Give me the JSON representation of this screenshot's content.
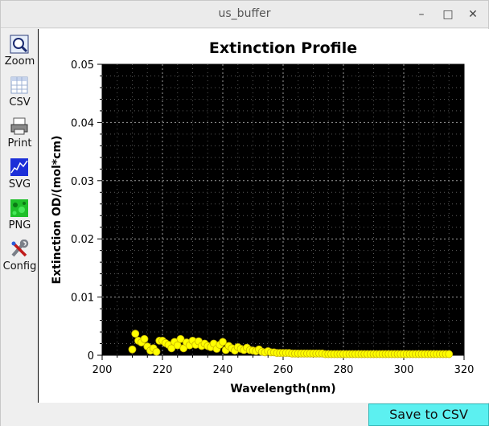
{
  "window": {
    "title": "us_buffer"
  },
  "toolbar": {
    "items": [
      {
        "label": "Zoom",
        "icon": "zoom-icon"
      },
      {
        "label": "CSV",
        "icon": "csv-icon"
      },
      {
        "label": "Print",
        "icon": "print-icon"
      },
      {
        "label": "SVG",
        "icon": "svg-icon"
      },
      {
        "label": "PNG",
        "icon": "png-icon"
      },
      {
        "label": "Config",
        "icon": "config-icon"
      }
    ]
  },
  "footer": {
    "save_label": "Save to CSV"
  },
  "colors": {
    "plot_bg": "#000000",
    "marker": "#ffff00",
    "button": "#5cf0f0"
  },
  "chart_data": {
    "type": "scatter",
    "title": "Extinction Profile",
    "xlabel": "Wavelength(nm)",
    "ylabel": "Extinction OD/(mol*cm)",
    "xlim": [
      200,
      320
    ],
    "ylim": [
      0,
      0.05
    ],
    "xticks": [
      "200",
      "220",
      "240",
      "260",
      "280",
      "300",
      "320"
    ],
    "yticks": [
      "0",
      "0.01",
      "0.02",
      "0.03",
      "0.04",
      "0.05"
    ],
    "grid": true,
    "x": [
      210,
      211,
      212,
      213,
      214,
      215,
      216,
      217,
      218,
      219,
      220,
      221,
      222,
      223,
      224,
      225,
      226,
      227,
      228,
      229,
      230,
      231,
      232,
      233,
      234,
      235,
      236,
      237,
      238,
      239,
      240,
      241,
      242,
      243,
      244,
      245,
      246,
      247,
      248,
      249,
      250,
      251,
      252,
      253,
      254,
      255,
      256,
      257,
      258,
      259,
      260,
      261,
      262,
      263,
      264,
      265,
      266,
      267,
      268,
      269,
      270,
      271,
      272,
      273,
      274,
      275,
      276,
      277,
      278,
      279,
      280,
      281,
      282,
      283,
      284,
      285,
      286,
      287,
      288,
      289,
      290,
      291,
      292,
      293,
      294,
      295,
      296,
      297,
      298,
      299,
      300,
      301,
      302,
      303,
      304,
      305,
      306,
      307,
      308,
      309,
      310,
      311,
      312,
      313,
      314,
      315
    ],
    "y": [
      0.001,
      0.0037,
      0.0025,
      0.0022,
      0.0028,
      0.0015,
      0.0008,
      0.0012,
      0.0006,
      0.0025,
      0.0025,
      0.0021,
      0.0018,
      0.0012,
      0.0023,
      0.0017,
      0.0028,
      0.0012,
      0.0022,
      0.0017,
      0.0025,
      0.0018,
      0.0024,
      0.0016,
      0.002,
      0.0016,
      0.0014,
      0.002,
      0.0011,
      0.0018,
      0.0023,
      0.0009,
      0.0016,
      0.0012,
      0.0008,
      0.0014,
      0.0011,
      0.0009,
      0.0013,
      0.0009,
      0.0008,
      0.0007,
      0.001,
      0.0006,
      0.0005,
      0.0007,
      0.0005,
      0.0005,
      0.0004,
      0.0004,
      0.0004,
      0.0004,
      0.0004,
      0.0003,
      0.0003,
      0.0003,
      0.0003,
      0.0003,
      0.0003,
      0.0003,
      0.0003,
      0.0003,
      0.0003,
      0.0003,
      0.0002,
      0.0002,
      0.0002,
      0.0002,
      0.0002,
      0.0002,
      0.0002,
      0.0002,
      0.0002,
      0.0002,
      0.0002,
      0.0002,
      0.0002,
      0.0002,
      0.0002,
      0.0002,
      0.0002,
      0.0002,
      0.0002,
      0.0002,
      0.0002,
      0.0002,
      0.0002,
      0.0002,
      0.0002,
      0.0002,
      0.0002,
      0.0002,
      0.0002,
      0.0002,
      0.0002,
      0.0002,
      0.0002,
      0.0002,
      0.0002,
      0.0002,
      0.0002,
      0.0002,
      0.0002,
      0.0002,
      0.0002,
      0.0002
    ]
  }
}
